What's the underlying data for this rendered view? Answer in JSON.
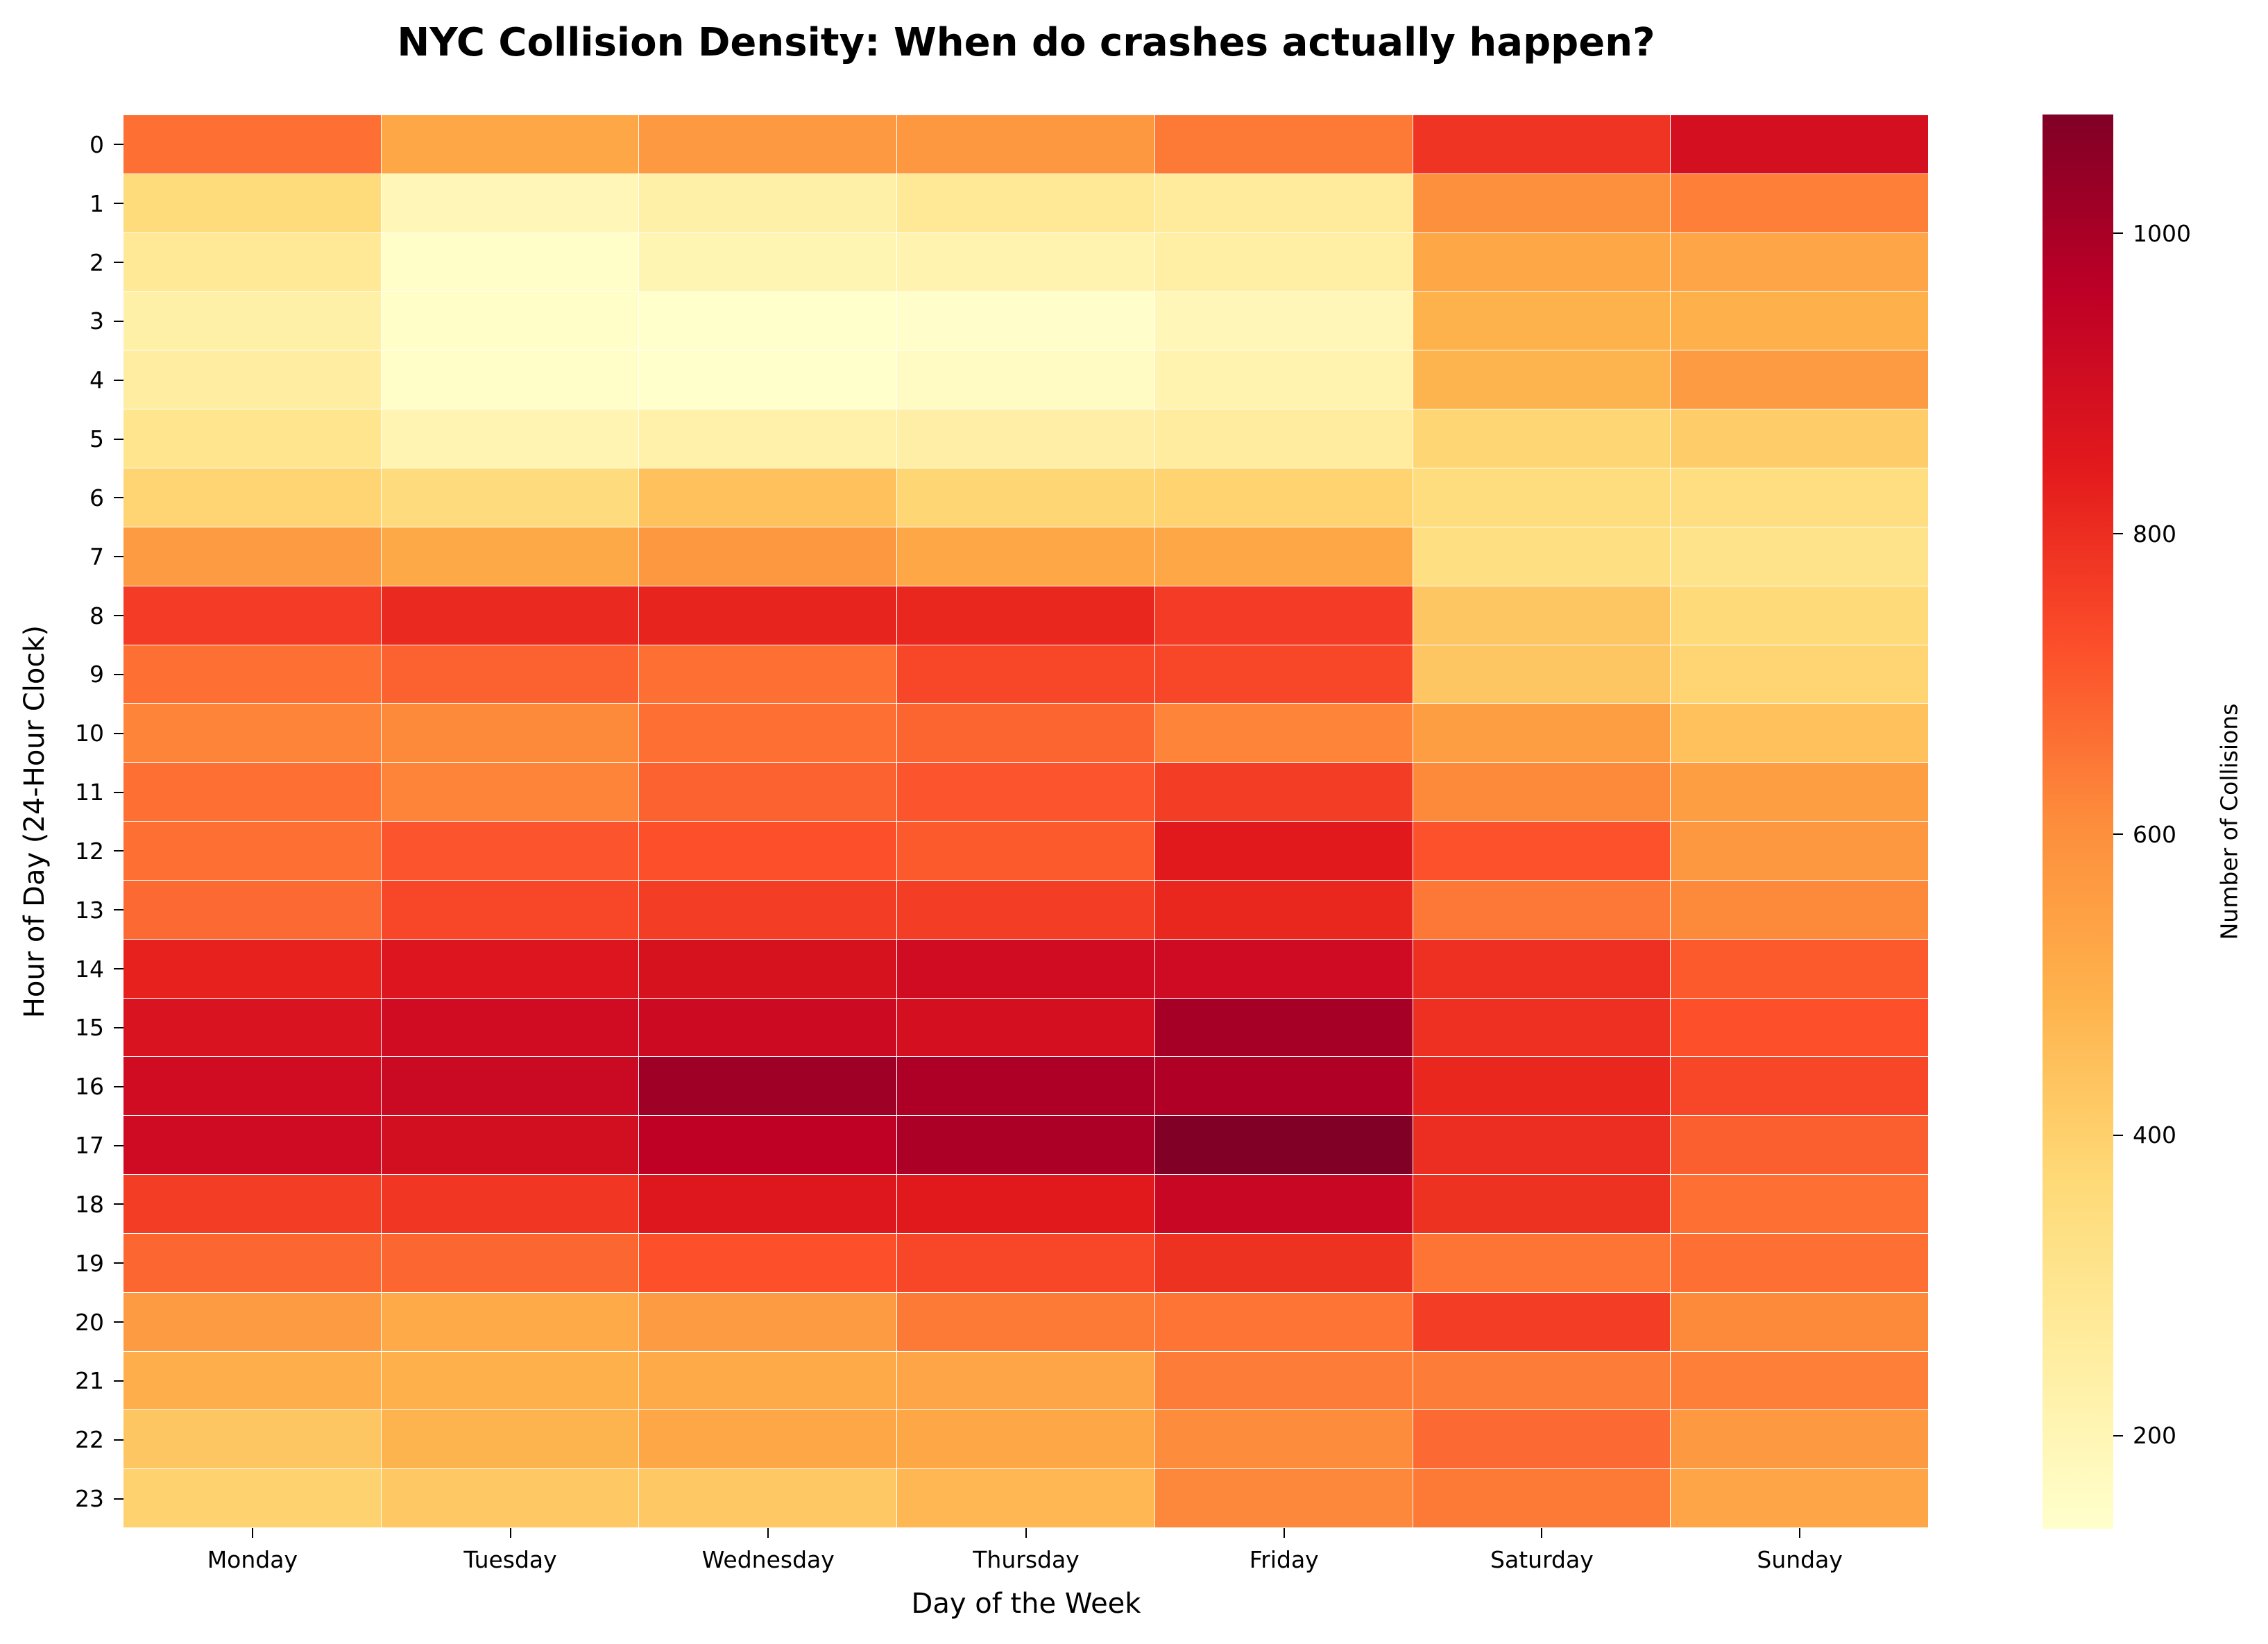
{
  "chart_data": {
    "type": "heatmap",
    "title": "NYC Collision Density: When do crashes actually happen?",
    "xlabel": "Day of the Week",
    "ylabel": "Hour of Day (24-Hour Clock)",
    "colorbar_label": "Number of Collisions",
    "colormap": "YlOrRd",
    "vmin": 138,
    "vmax": 1079,
    "colorbar_ticks": [
      200,
      400,
      600,
      800,
      1000
    ],
    "x_categories": [
      "Monday",
      "Tuesday",
      "Wednesday",
      "Thursday",
      "Friday",
      "Saturday",
      "Sunday"
    ],
    "y_categories": [
      "0",
      "1",
      "2",
      "3",
      "4",
      "5",
      "6",
      "7",
      "8",
      "9",
      "10",
      "11",
      "12",
      "13",
      "14",
      "15",
      "16",
      "17",
      "18",
      "19",
      "20",
      "21",
      "22",
      "23"
    ],
    "values": [
      [
        665,
        525,
        570,
        575,
        645,
        785,
        890
      ],
      [
        360,
        195,
        235,
        280,
        270,
        600,
        635
      ],
      [
        285,
        150,
        205,
        215,
        245,
        525,
        530
      ],
      [
        235,
        145,
        140,
        143,
        195,
        490,
        495
      ],
      [
        250,
        147,
        138,
        165,
        215,
        485,
        565
      ],
      [
        305,
        210,
        230,
        240,
        260,
        380,
        410
      ],
      [
        385,
        355,
        445,
        380,
        390,
        350,
        345
      ],
      [
        565,
        520,
        575,
        525,
        525,
        340,
        315
      ],
      [
        770,
        810,
        820,
        815,
        770,
        430,
        365
      ],
      [
        665,
        690,
        665,
        745,
        745,
        430,
        385
      ],
      [
        625,
        615,
        665,
        685,
        625,
        555,
        445
      ],
      [
        665,
        625,
        690,
        715,
        765,
        615,
        555
      ],
      [
        665,
        715,
        725,
        705,
        850,
        720,
        575
      ],
      [
        675,
        745,
        765,
        765,
        815,
        650,
        615
      ],
      [
        825,
        865,
        880,
        905,
        910,
        795,
        705
      ],
      [
        875,
        905,
        915,
        890,
        1005,
        795,
        725
      ],
      [
        905,
        920,
        1020,
        990,
        985,
        815,
        745
      ],
      [
        910,
        895,
        955,
        995,
        1079,
        800,
        695
      ],
      [
        765,
        780,
        860,
        850,
        930,
        790,
        665
      ],
      [
        680,
        680,
        725,
        745,
        790,
        655,
        665
      ],
      [
        565,
        515,
        565,
        645,
        655,
        765,
        615
      ],
      [
        500,
        495,
        515,
        530,
        640,
        640,
        635
      ],
      [
        430,
        485,
        525,
        525,
        610,
        675,
        570
      ],
      [
        395,
        425,
        425,
        475,
        620,
        645,
        530
      ]
    ],
    "grid_lines": "white"
  },
  "colors": {
    "stops": [
      "#ffffcc",
      "#ffeda0",
      "#fed976",
      "#feb24c",
      "#fd8d3c",
      "#fc4e2a",
      "#e31a1c",
      "#bd0026",
      "#800026"
    ],
    "background": "#ffffff",
    "text": "#000000"
  }
}
